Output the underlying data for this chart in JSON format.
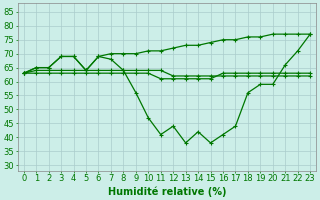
{
  "xlabel": "Humidité relative (%)",
  "background_color": "#cceee8",
  "grid_color": "#aacccc",
  "line_color": "#007700",
  "x_values": [
    0,
    1,
    2,
    3,
    4,
    5,
    6,
    7,
    8,
    9,
    10,
    11,
    12,
    13,
    14,
    15,
    16,
    17,
    18,
    19,
    20,
    21,
    22,
    23
  ],
  "curve_upper": [
    63,
    65,
    65,
    69,
    69,
    64,
    69,
    70,
    70,
    70,
    71,
    71,
    72,
    73,
    73,
    74,
    75,
    75,
    76,
    76,
    77,
    77,
    77,
    77
  ],
  "curve_dip": [
    63,
    65,
    65,
    69,
    69,
    64,
    69,
    68,
    64,
    56,
    47,
    41,
    44,
    38,
    42,
    38,
    41,
    44,
    56,
    59,
    59,
    66,
    71,
    77
  ],
  "curve_flat1": [
    63,
    64,
    64,
    64,
    64,
    64,
    64,
    64,
    64,
    64,
    64,
    64,
    62,
    62,
    62,
    62,
    62,
    62,
    62,
    62,
    62,
    62,
    62,
    62
  ],
  "curve_flat2": [
    63,
    63,
    63,
    63,
    63,
    63,
    63,
    63,
    63,
    63,
    63,
    61,
    61,
    61,
    61,
    61,
    63,
    63,
    63,
    63,
    63,
    63,
    63,
    63
  ],
  "ylim": [
    28,
    88
  ],
  "yticks": [
    30,
    35,
    40,
    45,
    50,
    55,
    60,
    65,
    70,
    75,
    80,
    85
  ],
  "xlim": [
    -0.5,
    23.5
  ],
  "xlabel_fontsize": 7,
  "tick_fontsize": 6
}
